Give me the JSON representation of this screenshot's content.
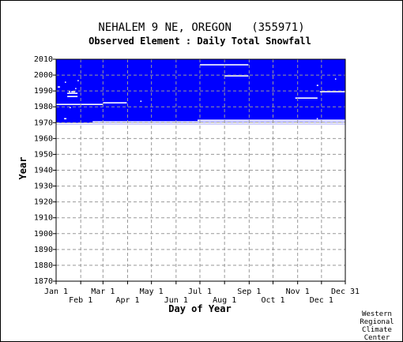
{
  "chart_data": {
    "type": "heatmap",
    "title": "NEHALEM 9 NE, OREGON   (355971)",
    "subtitle": "Observed Element : Daily Total Snowfall",
    "xlabel": "Day of Year",
    "ylabel": "Year",
    "x_ticks_top_row": [
      "Jan 1",
      "Mar 1",
      "May 1",
      "Jul 1",
      "Sep 1",
      "Nov 1",
      "Dec 31"
    ],
    "x_ticks_bottom_row": [
      "Feb 1",
      "Apr 1",
      "Jun 1",
      "Aug 1",
      "Oct 1",
      "Dec 1"
    ],
    "y_ticks": [
      "1870",
      "1880",
      "1890",
      "1900",
      "1910",
      "1920",
      "1930",
      "1940",
      "1950",
      "1960",
      "1970",
      "1980",
      "1990",
      "2000",
      "2010"
    ],
    "xlim": [
      1,
      365
    ],
    "ylim": [
      1870,
      2010
    ],
    "grid": true,
    "data_color": "#0000ff",
    "missing_color": "#ffffff",
    "record_start_year": 1970,
    "record_end_year": 2010,
    "missing_segments": [
      {
        "year": 1969,
        "start_day": 1,
        "end_day": 365
      },
      {
        "year": 1970,
        "start_day": 47,
        "end_day": 365
      },
      {
        "year": 1971,
        "start_day": 179,
        "end_day": 365
      },
      {
        "year": 1971,
        "start_day": 329,
        "end_day": 365
      },
      {
        "year": 1972,
        "start_day": 11,
        "end_day": 14
      },
      {
        "year": 1972,
        "start_day": 329,
        "end_day": 330
      },
      {
        "year": 1979,
        "start_day": 18,
        "end_day": 19
      },
      {
        "year": 1981,
        "start_day": 1,
        "end_day": 60
      },
      {
        "year": 1982,
        "start_day": 60,
        "end_day": 90
      },
      {
        "year": 1983,
        "start_day": 107,
        "end_day": 108
      },
      {
        "year": 1985,
        "start_day": 302,
        "end_day": 330
      },
      {
        "year": 1986,
        "start_day": 15,
        "end_day": 28
      },
      {
        "year": 1988,
        "start_day": 15,
        "end_day": 28
      },
      {
        "year": 1989,
        "start_day": 17,
        "end_day": 19
      },
      {
        "year": 1989,
        "start_day": 20,
        "end_day": 25
      },
      {
        "year": 1989,
        "start_day": 333,
        "end_day": 365
      },
      {
        "year": 1991,
        "start_day": 25,
        "end_day": 26
      },
      {
        "year": 1992,
        "start_day": 3,
        "end_day": 6
      },
      {
        "year": 1993,
        "start_day": 329,
        "end_day": 331
      },
      {
        "year": 1995,
        "start_day": 12,
        "end_day": 13
      },
      {
        "year": 1996,
        "start_day": 28,
        "end_day": 29
      },
      {
        "year": 1997,
        "start_day": 352,
        "end_day": 353
      },
      {
        "year": 1999,
        "start_day": 213,
        "end_day": 243
      },
      {
        "year": 2006,
        "start_day": 182,
        "end_day": 243
      }
    ],
    "credit": [
      "Western",
      "Regional",
      "Climate",
      "Center"
    ]
  }
}
